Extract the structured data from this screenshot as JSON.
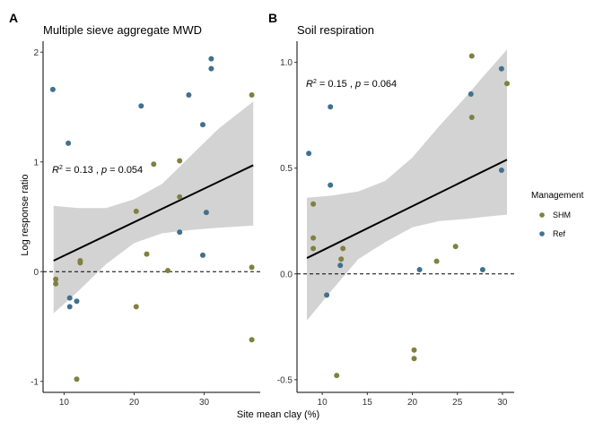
{
  "chart_data": [
    {
      "type": "scatter",
      "panel_tag": "A",
      "title": "Multiple sieve aggregate MWD",
      "xlabel": "Site mean clay (%)",
      "ylabel": "Log response ratio",
      "xlim": [
        7,
        38
      ],
      "ylim": [
        -1.1,
        2.1
      ],
      "xticks": [
        10,
        20,
        30
      ],
      "yticks": [
        -1,
        0,
        1,
        2
      ],
      "hline": 0,
      "annotation": {
        "r2_symbol": "R",
        "r2_sup": "2",
        "r2_value": " = 0.13 , ",
        "p_symbol": "p",
        "p_value": " = 0.054"
      },
      "regression": {
        "x": [
          8.5,
          37
        ],
        "line": [
          0.1,
          0.97
        ],
        "ci_x": [
          8.5,
          12,
          16,
          20,
          24,
          28,
          32,
          37
        ],
        "ci_upper": [
          0.6,
          0.58,
          0.58,
          0.66,
          0.8,
          1.05,
          1.3,
          1.55
        ],
        "ci_lower": [
          -0.38,
          -0.18,
          0.07,
          0.26,
          0.35,
          0.38,
          0.4,
          0.42
        ]
      },
      "series": [
        {
          "name": "SHM",
          "color": "#808040",
          "points": [
            [
              8.8,
              -0.07
            ],
            [
              8.8,
              -0.11
            ],
            [
              11.8,
              -0.98
            ],
            [
              12.3,
              0.1
            ],
            [
              12.3,
              0.08
            ],
            [
              20.3,
              0.55
            ],
            [
              20.3,
              -0.32
            ],
            [
              21.8,
              0.16
            ],
            [
              22.8,
              0.98
            ],
            [
              24.8,
              0.01
            ],
            [
              26.5,
              1.01
            ],
            [
              26.5,
              0.68
            ],
            [
              36.8,
              1.61
            ],
            [
              36.8,
              0.04
            ],
            [
              36.8,
              -0.62
            ]
          ]
        },
        {
          "name": "Ref",
          "color": "#41708e",
          "points": [
            [
              8.4,
              1.66
            ],
            [
              10.6,
              1.17
            ],
            [
              10.8,
              -0.24
            ],
            [
              10.8,
              -0.32
            ],
            [
              11.8,
              -0.27
            ],
            [
              21,
              1.51
            ],
            [
              26.5,
              0.36
            ],
            [
              27.8,
              1.61
            ],
            [
              29.8,
              1.34
            ],
            [
              29.8,
              0.15
            ],
            [
              30.3,
              0.54
            ],
            [
              31,
              1.94
            ],
            [
              31,
              1.85
            ]
          ]
        }
      ]
    },
    {
      "type": "scatter",
      "panel_tag": "B",
      "title": "Soil respiration",
      "xlabel": "Site mean clay (%)",
      "ylabel": "",
      "xlim": [
        7.2,
        31.3
      ],
      "ylim": [
        -0.56,
        1.1
      ],
      "xticks": [
        10,
        15,
        20,
        25,
        30
      ],
      "yticks": [
        -0.5,
        0.0,
        0.5,
        1.0
      ],
      "ytick_labels": [
        "-0.5",
        "0.0",
        "0.5",
        "1.0"
      ],
      "hline": 0,
      "annotation": {
        "r2_symbol": "R",
        "r2_sup": "2",
        "r2_value": " = 0.15 , ",
        "p_symbol": "p",
        "p_value": " = 0.064"
      },
      "regression": {
        "x": [
          8.3,
          30.5
        ],
        "line": [
          0.075,
          0.54
        ],
        "ci_x": [
          8.3,
          11,
          14,
          17,
          20,
          23,
          26,
          28,
          30.5
        ],
        "ci_upper": [
          0.36,
          0.37,
          0.39,
          0.44,
          0.55,
          0.7,
          0.84,
          0.94,
          1.06
        ],
        "ci_lower": [
          -0.22,
          -0.08,
          0.07,
          0.15,
          0.22,
          0.25,
          0.26,
          0.27,
          0.28
        ]
      },
      "series": [
        {
          "name": "SHM",
          "color": "#808040",
          "points": [
            [
              9,
              0.33
            ],
            [
              9,
              0.17
            ],
            [
              9,
              0.12
            ],
            [
              11.6,
              -0.48
            ],
            [
              12.1,
              0.07
            ],
            [
              12.3,
              0.12
            ],
            [
              20.2,
              -0.36
            ],
            [
              20.2,
              -0.4
            ],
            [
              22.7,
              0.06
            ],
            [
              24.8,
              0.13
            ],
            [
              26.6,
              1.03
            ],
            [
              26.6,
              0.74
            ],
            [
              30.5,
              0.9
            ]
          ]
        },
        {
          "name": "Ref",
          "color": "#41708e",
          "points": [
            [
              8.5,
              0.57
            ],
            [
              10.5,
              -0.1
            ],
            [
              10.9,
              0.79
            ],
            [
              10.9,
              0.42
            ],
            [
              12,
              0.04
            ],
            [
              20.8,
              0.02
            ],
            [
              26.5,
              0.85
            ],
            [
              27.8,
              0.02
            ],
            [
              29.9,
              0.97
            ],
            [
              29.9,
              0.49
            ]
          ]
        }
      ]
    }
  ],
  "legend": {
    "title": "Management",
    "items": [
      {
        "label": "SHM",
        "color": "#808040"
      },
      {
        "label": "Ref",
        "color": "#41708e"
      }
    ]
  }
}
